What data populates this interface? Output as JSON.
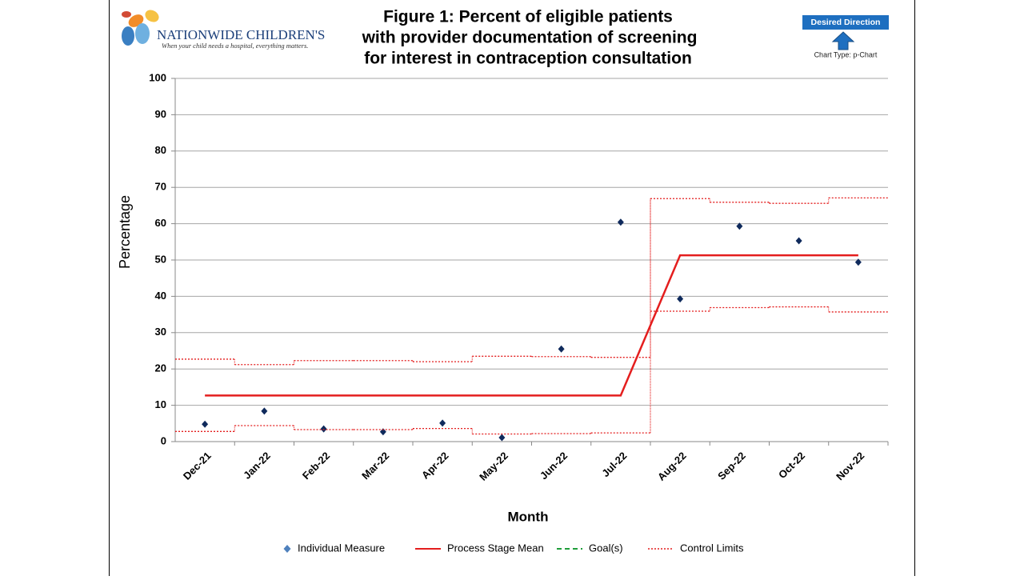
{
  "logo": {
    "name": "NATIONWIDE CHILDREN'S",
    "tagline": "When your child needs a hospital, everything matters."
  },
  "desired_direction": "Desired Direction",
  "chart_type_note": "Chart Type: p-Chart",
  "chart_data": {
    "type": "line",
    "title": [
      "Figure 1: Percent of eligible patients",
      "with provider documentation of screening",
      "for interest in contraception consultation"
    ],
    "x_label": "Month",
    "y_label": "Percentage",
    "categories": [
      "Dec-21",
      "Jan-22",
      "Feb-22",
      "Mar-22",
      "Apr-22",
      "May-22",
      "Jun-22",
      "Jul-22",
      "Aug-22",
      "Sep-22",
      "Oct-22",
      "Nov-22"
    ],
    "series": [
      {
        "name": "Individual Measure",
        "color": "#0f2a5c",
        "values": [
          4.8,
          8.4,
          3.5,
          2.7,
          5.1,
          1.1,
          25.5,
          60.4,
          39.3,
          59.3,
          55.3,
          49.4
        ]
      },
      {
        "name": "Process Stage Mean",
        "color": "#e41e1e",
        "values": [
          12.7,
          12.7,
          12.7,
          12.7,
          12.7,
          12.7,
          12.7,
          12.7,
          51.3,
          51.3,
          51.3,
          51.3
        ]
      },
      {
        "name": "Goal(s)",
        "color": "#1f9e3a",
        "values": [
          null,
          null,
          null,
          null,
          null,
          null,
          null,
          null,
          null,
          null,
          null,
          null
        ]
      },
      {
        "name": "Control Limits",
        "color": "#e41e1e",
        "upper": [
          22.7,
          21.2,
          22.3,
          22.3,
          22.0,
          23.5,
          23.4,
          23.2,
          66.9,
          65.9,
          65.6,
          67.1
        ],
        "lower": [
          2.8,
          4.4,
          3.3,
          3.3,
          3.6,
          2.1,
          2.2,
          2.4,
          35.9,
          36.9,
          37.1,
          35.7
        ]
      }
    ],
    "ylim": [
      0,
      100
    ],
    "yticks": [
      0,
      10,
      20,
      30,
      40,
      50,
      60,
      70,
      80,
      90,
      100
    ],
    "grid": true,
    "legend": "bottom"
  }
}
